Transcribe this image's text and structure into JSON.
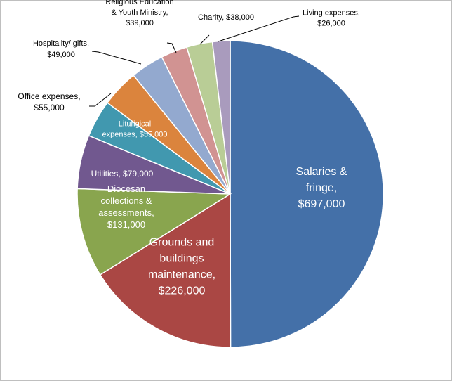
{
  "chart_data": {
    "type": "pie",
    "title": "",
    "slices": [
      {
        "label_lines": [
          "Salaries &",
          "fringe,",
          "$697,000"
        ],
        "value": 697000,
        "color": "#4470A8"
      },
      {
        "label_lines": [
          "Grounds and",
          "buildings",
          "maintenance,",
          "$226,000"
        ],
        "value": 226000,
        "color": "#AA4744"
      },
      {
        "label_lines": [
          "Diocesan",
          "collections &",
          "assessments,",
          "$131,000"
        ],
        "value": 131000,
        "color": "#89A54E"
      },
      {
        "label_lines": [
          "Utilities, $79,000"
        ],
        "value": 79000,
        "color": "#71588F"
      },
      {
        "label_lines": [
          "Liturigical",
          "expenses, $55,000"
        ],
        "value": 55000,
        "color": "#4198AF"
      },
      {
        "label_lines": [
          "Office expenses,",
          "$55,000"
        ],
        "value": 55000,
        "color": "#DB843D"
      },
      {
        "label_lines": [
          "Hospitality/ gifts,",
          "$49,000"
        ],
        "value": 49000,
        "color": "#93A9CF"
      },
      {
        "label_lines": [
          "Religious Education",
          "& Youth Ministry,",
          "$39,000"
        ],
        "value": 39000,
        "color": "#D19392"
      },
      {
        "label_lines": [
          "Charity, $38,000"
        ],
        "value": 38000,
        "color": "#B9CD96"
      },
      {
        "label_lines": [
          "Living expenses,",
          "$26,000"
        ],
        "value": 26000,
        "color": "#A99BBD"
      }
    ]
  }
}
